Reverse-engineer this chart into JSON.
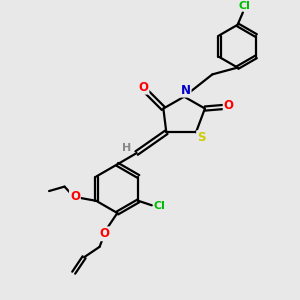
{
  "bg_color": "#e8e8e8",
  "bond_color": "#000000",
  "atom_colors": {
    "O": "#ff0000",
    "N": "#0000cc",
    "S": "#cccc00",
    "Cl": "#00bb00",
    "H": "#888888",
    "C": "#000000"
  },
  "figsize": [
    3.0,
    3.0
  ],
  "dpi": 100
}
